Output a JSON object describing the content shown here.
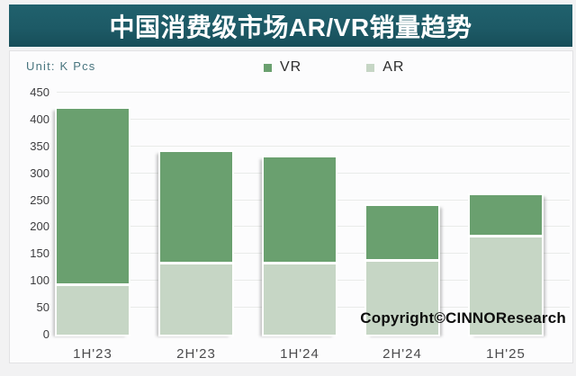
{
  "title_bar": {
    "text": "中国消费级市场AR/VR销量趋势",
    "background": "#1d5a66",
    "text_color": "#ffffff"
  },
  "unit_label": "Unit: K Pcs",
  "legend": {
    "position": "top",
    "items": [
      {
        "label": "VR",
        "color": "#6aa06f"
      },
      {
        "label": "AR",
        "color": "#c6d6c5"
      }
    ]
  },
  "copyright": "Copyright©CINNOResearch",
  "chart_data": {
    "type": "bar",
    "stacked": true,
    "title": "中国消费级市场AR/VR销量趋势",
    "unit": "K Pcs",
    "categories": [
      "1H'23",
      "2H'23",
      "1H'24",
      "2H'24",
      "1H'25"
    ],
    "series": [
      {
        "name": "VR",
        "color": "#6aa06f",
        "values": [
          325,
          205,
          195,
          100,
          75
        ]
      },
      {
        "name": "AR",
        "color": "#c6d6c5",
        "values": [
          95,
          135,
          135,
          140,
          185
        ]
      }
    ],
    "totals": [
      420,
      340,
      330,
      240,
      260
    ],
    "xlabel": "",
    "ylabel": "K Pcs",
    "ylim": [
      0,
      450
    ],
    "y_ticks": [
      450,
      400,
      350,
      300,
      250,
      200,
      150,
      100,
      50,
      0
    ],
    "grid": true,
    "legend_position": "top"
  }
}
